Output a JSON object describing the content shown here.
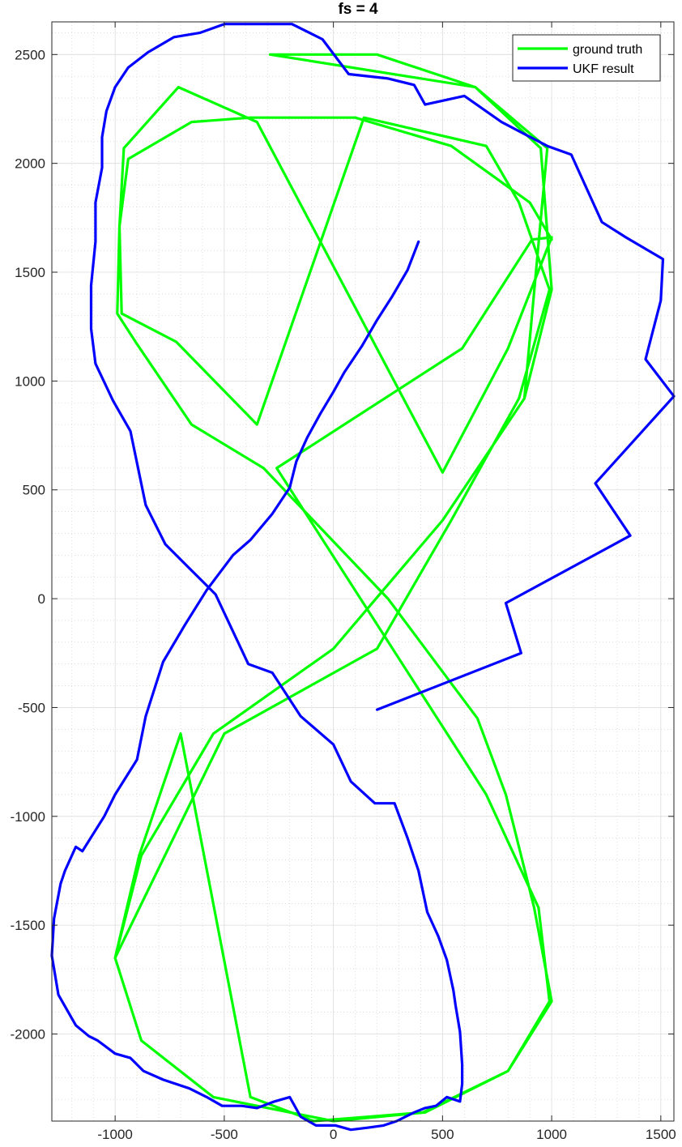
{
  "chart_data": {
    "type": "line",
    "title": "fs = 4",
    "xlabel": "",
    "ylabel": "",
    "xlim": [
      -1290,
      1560
    ],
    "ylim": [
      -2400,
      2650
    ],
    "x_ticks": [
      -1000,
      -500,
      0,
      500,
      1000,
      1500
    ],
    "y_ticks": [
      -2000,
      -1500,
      -1000,
      -500,
      0,
      500,
      1000,
      1500,
      2000,
      2500
    ],
    "x_tick_labels": [
      "-1000",
      "-500",
      "0",
      "500",
      "1000",
      "1500"
    ],
    "y_tick_labels": [
      "-2000",
      "-1500",
      "-1000",
      "-500",
      "0",
      "500",
      "1000",
      "1500",
      "2000",
      "2500"
    ],
    "grid": true,
    "minor_grid": true,
    "legend": "top-right",
    "series": [
      {
        "name": "ground truth",
        "color": "#00ff00",
        "x": [
          0,
          500,
          875,
          1000,
          950,
          650,
          -290,
          200,
          650,
          980,
          875,
          500,
          0,
          -550,
          -880,
          -1000,
          -880,
          -550,
          0,
          420,
          800,
          990,
          940,
          700,
          -260,
          590,
          910,
          1000,
          1000,
          800,
          500,
          -350,
          -710,
          -960,
          -980,
          -970,
          -720,
          -350,
          140,
          700,
          850,
          990,
          850,
          540,
          200,
          -500,
          -1000,
          -890,
          -700,
          -380,
          -90,
          410,
          800,
          1000,
          920,
          790,
          660,
          250,
          -320,
          -650,
          -900,
          -990,
          -980,
          -940,
          -650,
          -380,
          100,
          540,
          900,
          1000
        ],
        "y": [
          -230,
          360,
          920,
          1420,
          2070,
          2350,
          2500,
          2500,
          2350,
          2070,
          920,
          360,
          -230,
          -620,
          -1180,
          -1650,
          -2030,
          -2290,
          -2400,
          -2360,
          -2170,
          -1850,
          -1420,
          -900,
          600,
          1150,
          1650,
          1660,
          1660,
          1150,
          580,
          2190,
          2350,
          2070,
          1710,
          1310,
          1180,
          800,
          2210,
          2080,
          1820,
          1420,
          920,
          360,
          -230,
          -620,
          -1650,
          -1180,
          -620,
          -2290,
          -2400,
          -2360,
          -2170,
          -1850,
          -1420,
          -900,
          -550,
          0,
          600,
          800,
          1170,
          1310,
          1710,
          2020,
          2190,
          2210,
          2210,
          2080,
          1820,
          1650
        ]
      },
      {
        "name": "UKF result",
        "color": "#0000ff",
        "x": [
          200,
          860,
          790,
          1360,
          1200,
          1560,
          1430,
          1500,
          1510,
          1340,
          1230,
          1090,
          980,
          770,
          600,
          420,
          370,
          250,
          70,
          -50,
          -190,
          -360,
          -500,
          -610,
          -730,
          -850,
          -940,
          -1000,
          -1040,
          -1060,
          -1060,
          -1090,
          -1090,
          -1110,
          -1110,
          -1090,
          -1010,
          -930,
          -860,
          -770,
          -650,
          -540,
          -390,
          -280,
          -150,
          0,
          80,
          190,
          280,
          340,
          390,
          430,
          480,
          520,
          550,
          560,
          580,
          590,
          590,
          580,
          520,
          470,
          420,
          370,
          290,
          230,
          160,
          80,
          10,
          -80,
          -150,
          -200,
          -270,
          -350,
          -420,
          -510,
          -580,
          -660,
          -780,
          -870,
          -930,
          -1000,
          -1080,
          -1120,
          -1180,
          -1260,
          -1290,
          -1280,
          -1250,
          -1230,
          -1180,
          -1150,
          -1050,
          -1000,
          -900,
          -860,
          -780,
          -680,
          -580,
          -460,
          -380,
          -280,
          -200,
          -170,
          -120,
          -60,
          0,
          50,
          130,
          200,
          270,
          340,
          390
        ],
        "y": [
          -510,
          -250,
          -20,
          290,
          530,
          930,
          1100,
          1370,
          1560,
          1660,
          1730,
          2040,
          2080,
          2190,
          2310,
          2270,
          2360,
          2390,
          2410,
          2570,
          2640,
          2640,
          2640,
          2600,
          2580,
          2510,
          2440,
          2350,
          2240,
          2120,
          1980,
          1820,
          1640,
          1440,
          1240,
          1080,
          910,
          770,
          430,
          250,
          130,
          20,
          -300,
          -340,
          -540,
          -670,
          -840,
          -940,
          -940,
          -1100,
          -1250,
          -1440,
          -1550,
          -1660,
          -1800,
          -1870,
          -1990,
          -2140,
          -2230,
          -2310,
          -2290,
          -2330,
          -2340,
          -2360,
          -2400,
          -2420,
          -2430,
          -2440,
          -2420,
          -2420,
          -2380,
          -2290,
          -2310,
          -2340,
          -2330,
          -2330,
          -2290,
          -2250,
          -2210,
          -2170,
          -2110,
          -2090,
          -2030,
          -2010,
          -1960,
          -1820,
          -1640,
          -1470,
          -1310,
          -1250,
          -1140,
          -1160,
          -1000,
          -900,
          -740,
          -540,
          -290,
          -120,
          40,
          200,
          270,
          390,
          510,
          630,
          740,
          850,
          950,
          1040,
          1160,
          1280,
          1390,
          1510,
          1640
        ]
      }
    ]
  }
}
